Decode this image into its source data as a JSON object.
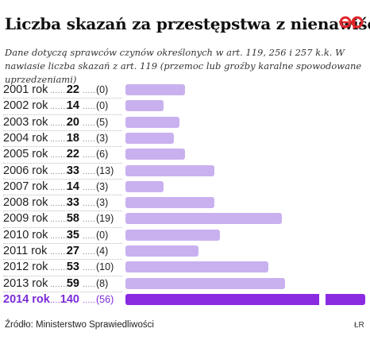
{
  "title": "Liczba skazań za przestępstwa z nienawiści",
  "subtitle": "Dane dotyczą sprawców czynów określonych w art. 119, 256 i 257 k.k. W nawiasie liczba skazań z art. 119 (przemoc lub groźby karalne spowodowane uprzedzeniami)",
  "source": "Źródło: Ministerstwo Sprawiedliwości",
  "author": "ŁR",
  "logo": "ePP",
  "colors": {
    "bar": "#c9b1f0",
    "highlight": "#8a2be2",
    "highlight_text": "#7a2bd8",
    "logo": "#e0262a"
  },
  "chart_data": {
    "type": "bar",
    "orientation": "horizontal",
    "categories": [
      "2001 rok",
      "2002 rok",
      "2003 rok",
      "2004 rok",
      "2005 rok",
      "2006 rok",
      "2007 rok",
      "2008 rok",
      "2009 rok",
      "2010 rok",
      "2011 rok",
      "2012 rok",
      "2013 rok",
      "2014 rok"
    ],
    "values": [
      22,
      14,
      20,
      18,
      22,
      33,
      14,
      33,
      58,
      35,
      27,
      53,
      59,
      140
    ],
    "secondary_labels": [
      "(0)",
      "(0)",
      "(5)",
      "(3)",
      "(6)",
      "(13)",
      "(3)",
      "(3)",
      "(19)",
      "(0)",
      "(4)",
      "(10)",
      "(8)",
      "(56)"
    ],
    "highlight": "2014 rok",
    "axis_break_on": "2014 rok"
  }
}
